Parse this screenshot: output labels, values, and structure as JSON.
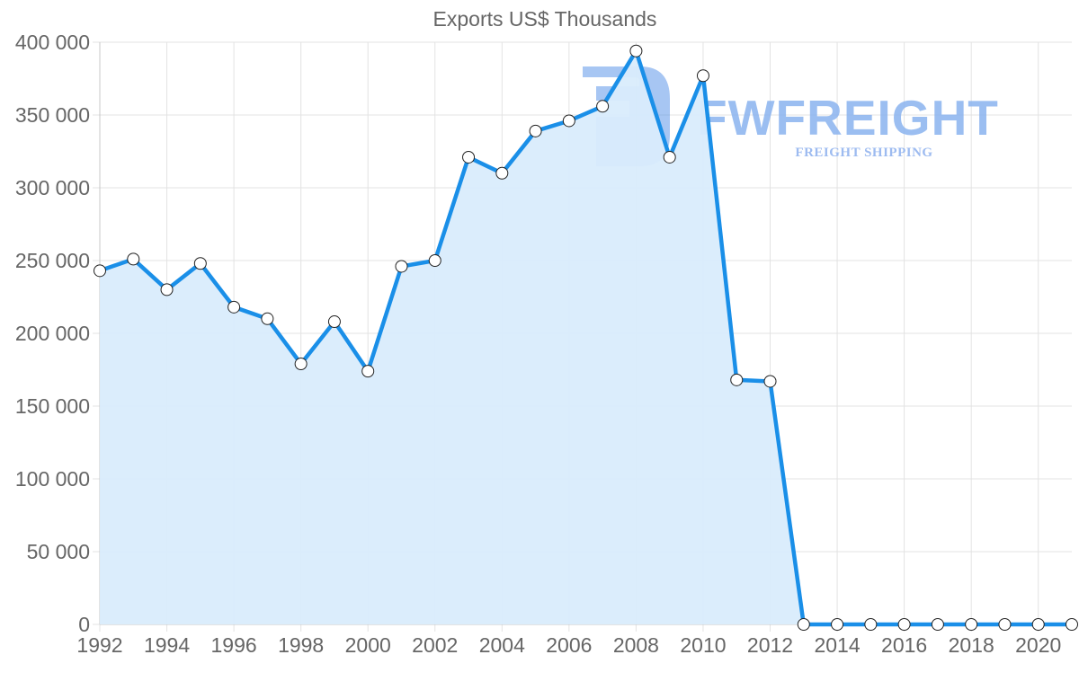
{
  "chart_data": {
    "type": "area",
    "title": "Exports US$ Thousands",
    "xlabel": "",
    "ylabel": "",
    "x": [
      1992,
      1993,
      1994,
      1995,
      1996,
      1997,
      1998,
      1999,
      2000,
      2001,
      2002,
      2003,
      2004,
      2005,
      2006,
      2007,
      2008,
      2009,
      2010,
      2011,
      2012,
      2013,
      2014,
      2015,
      2016,
      2017,
      2018,
      2019,
      2020,
      2021
    ],
    "series": [
      {
        "name": "Exports US$ Thousands",
        "values": [
          243000,
          251000,
          230000,
          248000,
          218000,
          210000,
          179000,
          208000,
          174000,
          246000,
          250000,
          321000,
          310000,
          339000,
          346000,
          356000,
          394000,
          321000,
          377000,
          168000,
          167000,
          0,
          0,
          0,
          0,
          0,
          0,
          0,
          0,
          0
        ]
      }
    ],
    "ylim": [
      0,
      400000
    ],
    "xlim": [
      1992,
      2021
    ],
    "y_ticks": [
      0,
      50000,
      100000,
      150000,
      200000,
      250000,
      300000,
      350000,
      400000
    ],
    "y_tick_labels": [
      "0",
      "50 000",
      "100 000",
      "150 000",
      "200 000",
      "250 000",
      "300 000",
      "350 000",
      "400 000"
    ],
    "x_ticks": [
      1992,
      1994,
      1996,
      1998,
      2000,
      2002,
      2004,
      2006,
      2008,
      2010,
      2012,
      2014,
      2016,
      2018,
      2020
    ],
    "x_tick_labels": [
      "1992",
      "1994",
      "1996",
      "1998",
      "2000",
      "2002",
      "2004",
      "2006",
      "2008",
      "2010",
      "2012",
      "2014",
      "2016",
      "2018",
      "2020"
    ],
    "grid": true,
    "legend": "none",
    "colors": {
      "line": "#1a8fe8",
      "fill": "#d9ecfc",
      "point_fill": "#ffffff",
      "point_stroke": "#222222",
      "grid": "#e3e3e3",
      "axis_text": "#666666"
    }
  },
  "watermark": {
    "brand": "FWFREIGHT",
    "tagline": "FREIGHT SHIPPING"
  }
}
